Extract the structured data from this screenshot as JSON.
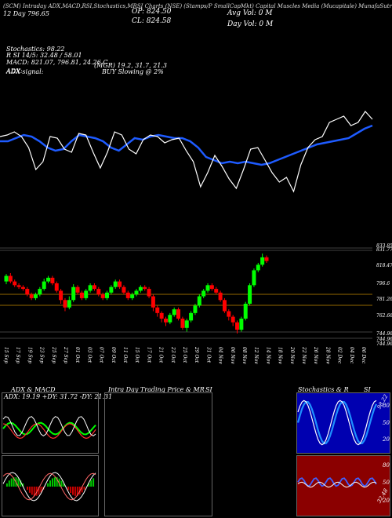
{
  "header": {
    "line1": "(SCM) Intraday ADX,MACD,RSI,Stochastics,MRSI Charts (NSE) (Stamps/P SmallCapMkt) Capital Muscles Media (Mucapitale) MunafaSutra.com",
    "stock_title": "(Stamps/P SmallCap)",
    "op": "OP: 824.50",
    "cl": "CL: 824.58",
    "day_vol": "Day Vol: 0   M",
    "avg_vol": "Avg Vol: 0   M",
    "left_small": "12 Day   796.65",
    "stoch_label": "Stochastics: 98.22",
    "rsi_line": "R   SI 14/5: 32.48 / 58.01",
    "macd_line": "MACD: 821.07, 796.81, 24.26  C",
    "adx_label": "ADX:",
    "adx_vals": "(MGR) 19.2, 31.7, 21.3",
    "adx_signal": "ADX  signal:",
    "buy_text": "BUY Slowing @ 2%"
  },
  "price_axis": [
    "833.85",
    "831.77",
    "818.47",
    "796.6",
    "781.26",
    "762.66",
    "744.96",
    "744.96",
    "744.96"
  ],
  "date_labels": [
    "15 Sep",
    "17 Sep",
    "19 Sep",
    "23 Sep",
    "25 Sep",
    "27 Sep",
    "01 Oct",
    "03 Oct",
    "07 Oct",
    "09 Oct",
    "11 Oct",
    "15 Oct",
    "17 Oct",
    "21 Oct",
    "23 Oct",
    "25 Oct",
    "29 Oct",
    "31 Oct",
    "04 Nov",
    "06 Nov",
    "08 Nov",
    "12 Nov",
    "14 Nov",
    "18 Nov",
    "20 Nov",
    "22 Nov",
    "26 Nov",
    "28 Nov",
    "02 Dec",
    "04 Dec",
    "06 Dec"
  ],
  "bottom": {
    "adx_title": "ADX  & MACD",
    "adx_values": "ADX: 19.19  +DY: 31.72  -DY: 21.31",
    "intra_title": "Intra  Day Trading Price  & MR",
    "intra_si": "SI",
    "stoch_title": "Stochastics & R",
    "stoch_si": "SI",
    "stoch_badge": "98.22",
    "rsi_badge": "32.48",
    "stoch_ticks": [
      "80",
      "50",
      "20"
    ],
    "rsi_ticks": [
      "80",
      "50",
      "20"
    ]
  },
  "colors": {
    "up": "#00ff00",
    "down": "#ff0000",
    "blue": "#1e5bff",
    "rsi_bg": "#8b0000"
  },
  "chart_data": [
    {
      "type": "candlestick",
      "title": "Stamps/P SmallCap",
      "ylim": [
        738,
        836
      ],
      "candles": [
        [
          800,
          806,
          808,
          797
        ],
        [
          806,
          800,
          809,
          798
        ],
        [
          800,
          796,
          802,
          794
        ],
        [
          796,
          794,
          798,
          792
        ],
        [
          794,
          792,
          796,
          790
        ],
        [
          792,
          786,
          794,
          784
        ],
        [
          786,
          782,
          788,
          780
        ],
        [
          782,
          786,
          788,
          780
        ],
        [
          786,
          792,
          794,
          784
        ],
        [
          792,
          800,
          803,
          790
        ],
        [
          800,
          804,
          806,
          798
        ],
        [
          804,
          798,
          806,
          796
        ],
        [
          798,
          790,
          800,
          788
        ],
        [
          790,
          780,
          792,
          776
        ],
        [
          780,
          772,
          782,
          768
        ],
        [
          772,
          780,
          784,
          770
        ],
        [
          780,
          794,
          797,
          778
        ],
        [
          794,
          788,
          796,
          786
        ],
        [
          788,
          782,
          790,
          780
        ],
        [
          782,
          790,
          792,
          780
        ],
        [
          790,
          796,
          798,
          788
        ],
        [
          796,
          792,
          798,
          790
        ],
        [
          792,
          786,
          794,
          784
        ],
        [
          786,
          782,
          788,
          780
        ],
        [
          782,
          788,
          790,
          780
        ],
        [
          788,
          794,
          796,
          786
        ],
        [
          794,
          800,
          802,
          792
        ],
        [
          800,
          794,
          802,
          792
        ],
        [
          794,
          788,
          796,
          786
        ],
        [
          788,
          782,
          790,
          780
        ],
        [
          782,
          786,
          788,
          780
        ],
        [
          786,
          790,
          792,
          784
        ],
        [
          790,
          794,
          796,
          788
        ],
        [
          794,
          792,
          796,
          790
        ],
        [
          792,
          784,
          794,
          782
        ],
        [
          784,
          772,
          786,
          768
        ],
        [
          772,
          766,
          774,
          762
        ],
        [
          766,
          760,
          768,
          756
        ],
        [
          760,
          756,
          762,
          752
        ],
        [
          756,
          764,
          766,
          754
        ],
        [
          764,
          770,
          772,
          762
        ],
        [
          770,
          760,
          772,
          758
        ],
        [
          760,
          750,
          762,
          748
        ],
        [
          750,
          758,
          760,
          746
        ],
        [
          758,
          766,
          768,
          756
        ],
        [
          766,
          774,
          776,
          764
        ],
        [
          774,
          784,
          786,
          772
        ],
        [
          784,
          790,
          792,
          782
        ],
        [
          790,
          796,
          798,
          788
        ],
        [
          796,
          792,
          798,
          790
        ],
        [
          792,
          788,
          794,
          786
        ],
        [
          788,
          780,
          790,
          778
        ],
        [
          780,
          768,
          782,
          766
        ],
        [
          768,
          762,
          770,
          758
        ],
        [
          762,
          756,
          764,
          752
        ],
        [
          756,
          748,
          758,
          744
        ],
        [
          748,
          760,
          762,
          746
        ],
        [
          760,
          776,
          778,
          758
        ],
        [
          776,
          796,
          798,
          774
        ],
        [
          796,
          812,
          814,
          794
        ],
        [
          812,
          818,
          820,
          810
        ],
        [
          818,
          826,
          830,
          816
        ],
        [
          826,
          822,
          828,
          820
        ]
      ]
    },
    {
      "type": "line",
      "title": "MRSI",
      "series": [
        {
          "values": [
            70,
            70,
            72,
            74,
            73,
            70,
            66,
            64,
            65,
            70,
            74,
            73,
            72,
            70,
            66,
            64,
            68,
            72,
            71,
            73,
            74,
            73,
            72,
            72,
            70,
            66,
            60,
            58,
            56,
            57,
            56,
            57,
            56,
            55,
            56,
            58,
            60,
            62,
            64,
            66,
            68,
            69,
            70,
            71,
            72,
            75,
            78,
            80
          ]
        },
        {
          "values": [
            73,
            74,
            76,
            73,
            66,
            52,
            57,
            73,
            72,
            65,
            63,
            75,
            74,
            63,
            53,
            63,
            76,
            74,
            65,
            62,
            71,
            74,
            73,
            69,
            71,
            72,
            64,
            57,
            41,
            50,
            61,
            54,
            46,
            40,
            52,
            65,
            66,
            58,
            50,
            44,
            47,
            38,
            55,
            66,
            71,
            73,
            82,
            84,
            86,
            80,
            82,
            89,
            84
          ]
        }
      ]
    }
  ]
}
